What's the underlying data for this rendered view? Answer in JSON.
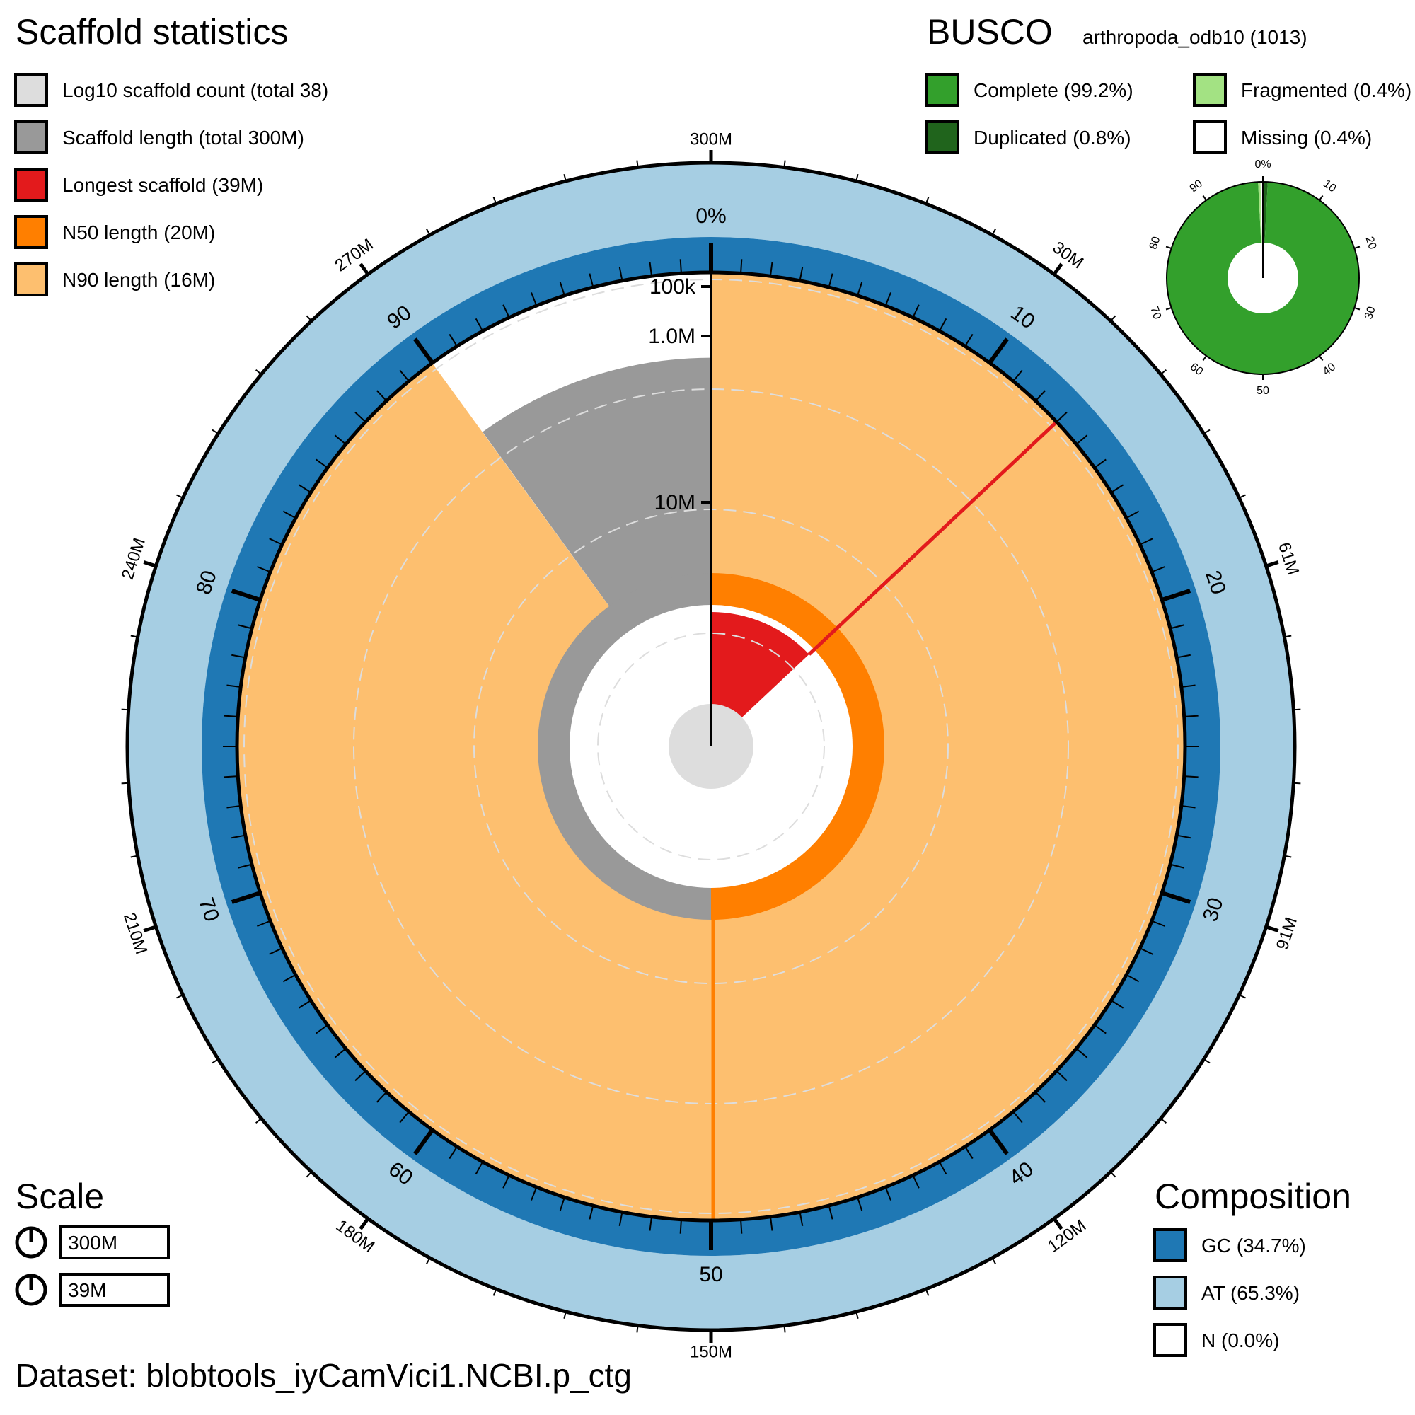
{
  "chart_data": {
    "type": "snail",
    "dataset_label": "Dataset: blobtools_iyCamVici1.NCBI.p_ctg",
    "scaffold_stats": {
      "title": "Scaffold statistics",
      "legend": [
        {
          "label": "Log10 scaffold count (total 38)",
          "color": "#dddddd"
        },
        {
          "label": "Scaffold length (total 300M)",
          "color": "#999999"
        },
        {
          "label": "Longest scaffold (39M)",
          "color": "#e31a1c"
        },
        {
          "label": "N50 length (20M)",
          "color": "#ff7f00"
        },
        {
          "label": "N90 length (16M)",
          "color": "#fdbf6f"
        }
      ],
      "total_length": 300,
      "longest": 39,
      "n50": 20,
      "n90": 16,
      "scaffold_count": 38
    },
    "outer_ticks": [
      "300M",
      "30M",
      "61M",
      "91M",
      "120M",
      "150M",
      "180M",
      "210M",
      "240M",
      "270M"
    ],
    "percent_ticks": [
      "0%",
      "10",
      "20",
      "30",
      "40",
      "50",
      "60",
      "70",
      "80",
      "90"
    ],
    "radial_ticks": [
      "100k",
      "1.0M",
      "10M"
    ],
    "busco": {
      "title": "BUSCO",
      "lineage": "arthropoda_odb10 (1013)",
      "complete_pct": 99.2,
      "duplicated_pct": 0.8,
      "fragmented_pct": 0.4,
      "missing_pct": 0.4,
      "legend": [
        {
          "label": "Complete (99.2%)",
          "color": "#33a02c"
        },
        {
          "label": "Duplicated (0.8%)",
          "color": "#20641c"
        },
        {
          "label": "Fragmented (0.4%)",
          "color": "#a3e283"
        },
        {
          "label": "Missing (0.4%)",
          "color": "#ffffff"
        }
      ],
      "pie_ticks": [
        "0%",
        "10",
        "20",
        "30",
        "40",
        "50",
        "60",
        "70",
        "80",
        "90"
      ]
    },
    "scale": {
      "title": "Scale",
      "items": [
        "300M",
        "39M"
      ]
    },
    "composition": {
      "title": "Composition",
      "gc_pct": 34.7,
      "at_pct": 65.3,
      "n_pct": 0.0,
      "legend": [
        {
          "label": "GC (34.7%)",
          "color": "#1f78b4"
        },
        {
          "label": "AT (65.3%)",
          "color": "#a6cee3"
        },
        {
          "label": "N (0.0%)",
          "color": "#ffffff"
        }
      ]
    }
  }
}
